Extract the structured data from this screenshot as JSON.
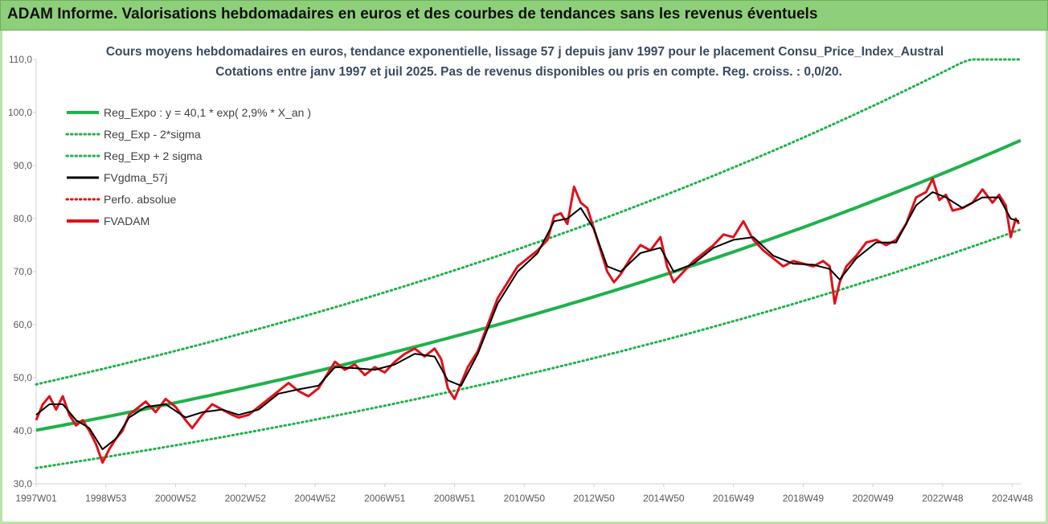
{
  "header": {
    "title": "ADAM Informe. Valorisations hebdomadaires en euros et des courbes de tendances sans les revenus éventuels"
  },
  "chart_data": {
    "type": "line",
    "title": "Cours moyens hebdomadaires en euros, tendance exponentielle, lissage 57 j depuis janv 1997 pour le placement Consu_Price_Index_Austral",
    "subtitle": "Cotations entre janv 1997 et juil 2025. Pas de revenus disponibles ou pris en compte. Reg. croiss. : 0,0/20.",
    "xlabel": "",
    "ylabel": "",
    "ylim": [
      30,
      110
    ],
    "y_ticks": [
      "30,0",
      "40,0",
      "50,0",
      "60,0",
      "70,0",
      "80,0",
      "90,0",
      "100,0",
      "110,0"
    ],
    "x_range": [
      1997.0,
      2025.55
    ],
    "x_tick_labels": [
      "1997W01",
      "1998W53",
      "2000W52",
      "2002W52",
      "2004W52",
      "2006W51",
      "2008W51",
      "2010W50",
      "2012W50",
      "2014W50",
      "2016W49",
      "2018W49",
      "2020W49",
      "2022W48",
      "2024W48"
    ],
    "x_tick_years": [
      1997.0,
      1999.0,
      2001.0,
      2003.0,
      2005.0,
      2007.0,
      2009.0,
      2011.0,
      2013.0,
      2015.0,
      2017.0,
      2019.0,
      2021.0,
      2023.0,
      2025.0
    ],
    "grid": false,
    "legend_position": "top-left",
    "legend": [
      {
        "name": "Reg_Expo : y = 40,1 * exp( 2,9% *  X_an )",
        "color": "#1fb14b",
        "style": "solid-thick"
      },
      {
        "name": "Reg_Exp - 2*sigma",
        "color": "#1fb14b",
        "style": "dotted"
      },
      {
        "name": "Reg_Exp + 2 sigma",
        "color": "#1fb14b",
        "style": "dotted"
      },
      {
        "name": "FVgdma_57j",
        "color": "#000000",
        "style": "solid"
      },
      {
        "name": "Perfo. absolue",
        "color": "#e0101a",
        "style": "dotted"
      },
      {
        "name": "FVADAM",
        "color": "#e0101a",
        "style": "solid-thick"
      }
    ],
    "regression": {
      "a": 40.1,
      "rate": 0.029,
      "start_year": 1997.0
    },
    "band_offsets": {
      "lower_factor": 0.8227,
      "upper_factor": 1.2157
    },
    "series": [
      {
        "name": "FVADAM",
        "points": [
          [
            1997.0,
            42.0
          ],
          [
            1997.2,
            45.0
          ],
          [
            1997.4,
            46.5
          ],
          [
            1997.6,
            44.0
          ],
          [
            1997.8,
            46.5
          ],
          [
            1998.0,
            43.0
          ],
          [
            1998.2,
            41.0
          ],
          [
            1998.4,
            42.0
          ],
          [
            1998.6,
            40.0
          ],
          [
            1998.8,
            37.5
          ],
          [
            1999.0,
            34.0
          ],
          [
            1999.2,
            36.5
          ],
          [
            1999.4,
            38.5
          ],
          [
            1999.6,
            40.0
          ],
          [
            1999.8,
            43.0
          ],
          [
            2000.0,
            44.0
          ],
          [
            2000.3,
            45.5
          ],
          [
            2000.6,
            43.5
          ],
          [
            2000.9,
            46.0
          ],
          [
            2001.2,
            44.5
          ],
          [
            2001.5,
            42.0
          ],
          [
            2001.7,
            40.5
          ],
          [
            2002.0,
            43.0
          ],
          [
            2002.3,
            45.0
          ],
          [
            2002.6,
            44.0
          ],
          [
            2002.9,
            43.0
          ],
          [
            2003.1,
            42.5
          ],
          [
            2003.4,
            43.0
          ],
          [
            2003.7,
            44.5
          ],
          [
            2004.0,
            46.0
          ],
          [
            2004.3,
            47.5
          ],
          [
            2004.6,
            49.0
          ],
          [
            2004.9,
            47.5
          ],
          [
            2005.2,
            46.5
          ],
          [
            2005.5,
            48.0
          ],
          [
            2005.8,
            51.0
          ],
          [
            2006.0,
            53.0
          ],
          [
            2006.3,
            51.5
          ],
          [
            2006.6,
            52.5
          ],
          [
            2006.9,
            50.5
          ],
          [
            2007.2,
            52.0
          ],
          [
            2007.5,
            51.0
          ],
          [
            2007.8,
            53.0
          ],
          [
            2008.1,
            54.5
          ],
          [
            2008.4,
            55.5
          ],
          [
            2008.7,
            54.0
          ],
          [
            2009.0,
            55.5
          ],
          [
            2009.2,
            53.5
          ],
          [
            2009.4,
            48.0
          ],
          [
            2009.6,
            46.0
          ],
          [
            2009.8,
            49.0
          ],
          [
            2010.0,
            52.0
          ],
          [
            2010.3,
            55.0
          ],
          [
            2010.6,
            60.0
          ],
          [
            2010.9,
            65.0
          ],
          [
            2011.2,
            68.0
          ],
          [
            2011.5,
            71.0
          ],
          [
            2011.8,
            72.5
          ],
          [
            2012.1,
            74.0
          ],
          [
            2012.4,
            76.0
          ],
          [
            2012.6,
            80.5
          ],
          [
            2012.8,
            81.0
          ],
          [
            2013.0,
            79.0
          ],
          [
            2013.2,
            86.0
          ],
          [
            2013.4,
            83.0
          ],
          [
            2013.6,
            82.0
          ],
          [
            2013.8,
            78.0
          ],
          [
            2014.0,
            74.0
          ],
          [
            2014.2,
            70.0
          ],
          [
            2014.4,
            68.0
          ],
          [
            2014.6,
            69.5
          ],
          [
            2014.9,
            72.5
          ],
          [
            2015.2,
            75.0
          ],
          [
            2015.5,
            74.0
          ],
          [
            2015.8,
            76.5
          ],
          [
            2016.0,
            71.0
          ],
          [
            2016.2,
            68.0
          ],
          [
            2016.5,
            70.0
          ],
          [
            2016.8,
            72.0
          ],
          [
            2017.1,
            73.5
          ],
          [
            2017.4,
            75.0
          ],
          [
            2017.7,
            77.0
          ],
          [
            2018.0,
            76.5
          ],
          [
            2018.3,
            79.5
          ],
          [
            2018.6,
            76.0
          ],
          [
            2018.9,
            74.0
          ],
          [
            2019.2,
            72.5
          ],
          [
            2019.5,
            71.0
          ],
          [
            2019.8,
            72.0
          ],
          [
            2020.1,
            71.5
          ],
          [
            2020.4,
            71.0
          ],
          [
            2020.7,
            72.0
          ],
          [
            2020.9,
            71.0
          ],
          [
            2021.05,
            64.0
          ],
          [
            2021.2,
            68.0
          ],
          [
            2021.4,
            71.0
          ],
          [
            2021.7,
            73.0
          ],
          [
            2022.0,
            75.5
          ],
          [
            2022.3,
            76.0
          ],
          [
            2022.6,
            75.0
          ],
          [
            2022.9,
            76.0
          ],
          [
            2023.2,
            79.0
          ],
          [
            2023.5,
            84.0
          ],
          [
            2023.8,
            85.0
          ],
          [
            2024.0,
            87.5
          ],
          [
            2024.2,
            83.5
          ],
          [
            2024.4,
            84.5
          ],
          [
            2024.6,
            81.5
          ],
          [
            2024.9,
            82.0
          ],
          [
            2025.2,
            83.0
          ],
          [
            2025.5,
            85.5
          ],
          [
            2025.8,
            83.0
          ],
          [
            2026.0,
            84.5
          ],
          [
            2026.2,
            82.5
          ],
          [
            2026.35,
            76.5
          ],
          [
            2026.5,
            80.0
          ],
          [
            2026.6,
            79.0
          ]
        ]
      },
      {
        "name": "FVgdma_57j",
        "points": [
          [
            1997.0,
            43.0
          ],
          [
            1997.4,
            45.0
          ],
          [
            1997.8,
            45.0
          ],
          [
            1998.2,
            42.0
          ],
          [
            1998.6,
            40.5
          ],
          [
            1999.0,
            36.5
          ],
          [
            1999.4,
            38.5
          ],
          [
            1999.8,
            42.5
          ],
          [
            2000.3,
            44.5
          ],
          [
            2000.9,
            45.0
          ],
          [
            2001.5,
            42.5
          ],
          [
            2002.0,
            43.5
          ],
          [
            2002.6,
            44.0
          ],
          [
            2003.1,
            43.0
          ],
          [
            2003.7,
            44.0
          ],
          [
            2004.3,
            47.0
          ],
          [
            2004.9,
            47.8
          ],
          [
            2005.5,
            48.5
          ],
          [
            2006.0,
            52.0
          ],
          [
            2006.6,
            51.8
          ],
          [
            2007.2,
            51.5
          ],
          [
            2007.8,
            52.5
          ],
          [
            2008.4,
            54.5
          ],
          [
            2009.0,
            54.0
          ],
          [
            2009.4,
            49.5
          ],
          [
            2009.8,
            48.5
          ],
          [
            2010.3,
            54.5
          ],
          [
            2010.9,
            64.0
          ],
          [
            2011.5,
            70.0
          ],
          [
            2012.1,
            73.5
          ],
          [
            2012.6,
            79.5
          ],
          [
            2013.0,
            80.0
          ],
          [
            2013.4,
            82.0
          ],
          [
            2013.8,
            78.0
          ],
          [
            2014.2,
            71.0
          ],
          [
            2014.6,
            70.0
          ],
          [
            2015.2,
            73.5
          ],
          [
            2015.8,
            74.5
          ],
          [
            2016.2,
            70.0
          ],
          [
            2016.8,
            71.5
          ],
          [
            2017.4,
            74.5
          ],
          [
            2018.0,
            76.0
          ],
          [
            2018.6,
            76.5
          ],
          [
            2019.2,
            73.0
          ],
          [
            2019.8,
            71.5
          ],
          [
            2020.4,
            71.3
          ],
          [
            2020.9,
            70.5
          ],
          [
            2021.2,
            68.5
          ],
          [
            2021.7,
            72.5
          ],
          [
            2022.3,
            75.5
          ],
          [
            2022.9,
            75.5
          ],
          [
            2023.5,
            82.5
          ],
          [
            2024.0,
            85.0
          ],
          [
            2024.4,
            84.0
          ],
          [
            2024.9,
            82.0
          ],
          [
            2025.5,
            84.0
          ],
          [
            2026.0,
            84.0
          ],
          [
            2026.35,
            80.0
          ],
          [
            2026.6,
            79.5
          ]
        ]
      }
    ]
  }
}
